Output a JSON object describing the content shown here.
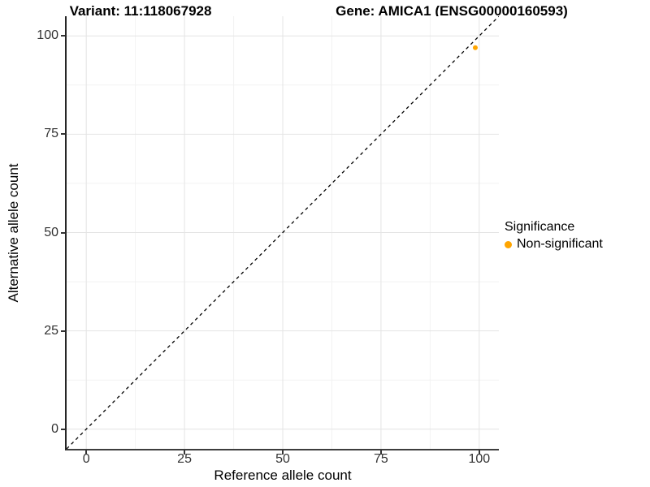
{
  "chart_data": {
    "type": "scatter",
    "titles": {
      "left": "Variant: 11:118067928",
      "right": "Gene: AMICA1 (ENSG00000160593)"
    },
    "xlabel": "Reference allele count",
    "ylabel": "Alternative allele count",
    "xlim": [
      -5,
      105
    ],
    "ylim": [
      -5,
      105
    ],
    "x_ticks": [
      0,
      25,
      50,
      75,
      100
    ],
    "y_ticks": [
      0,
      25,
      50,
      75,
      100
    ],
    "x_minor_ticks": [
      12.5,
      37.5,
      62.5,
      87.5
    ],
    "y_minor_ticks": [
      12.5,
      37.5,
      62.5,
      87.5
    ],
    "grid": true,
    "reference_line": {
      "type": "identity",
      "from": [
        -5,
        -5
      ],
      "to": [
        105,
        105
      ],
      "style": "dashed",
      "color": "#000000"
    },
    "series": [
      {
        "name": "Non-significant",
        "color": "#FFA500",
        "points": [
          {
            "x": 99,
            "y": 97
          }
        ]
      }
    ],
    "legend": {
      "title": "Significance",
      "position": "right",
      "items": [
        {
          "label": "Non-significant",
          "color": "#FFA500"
        }
      ]
    }
  },
  "colors": {
    "grid_major": "#E4E4E4",
    "grid_minor": "#F2F2F2",
    "axis": "#333333",
    "point": "#FFA500"
  }
}
